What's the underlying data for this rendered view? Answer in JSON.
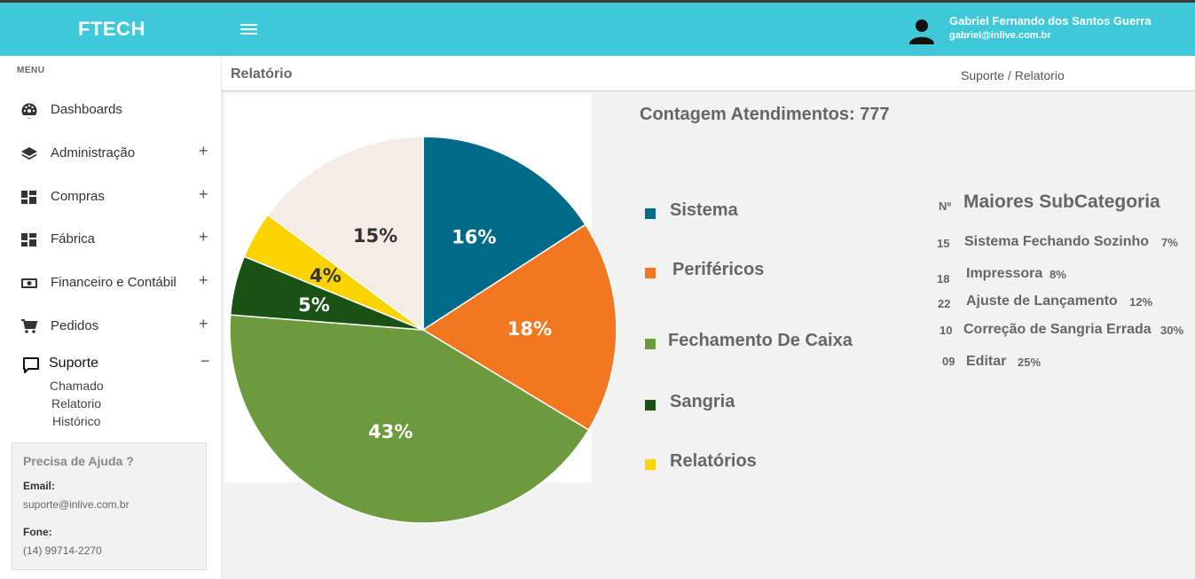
{
  "header": {
    "brand": "FTECH",
    "user_name": "Gabriel Fernando dos Santos Guerra",
    "user_email": "gabriel@inlive.com.br",
    "accent_color": "#3ec8d8"
  },
  "sidebar": {
    "menu_label": "MENU",
    "items": [
      {
        "label": "Dashboards",
        "icon": "dashboard-icon",
        "expand": ""
      },
      {
        "label": "Administração",
        "icon": "layers-icon",
        "expand": "+"
      },
      {
        "label": "Compras",
        "icon": "grid-icon",
        "expand": "+"
      },
      {
        "label": "Fábrica",
        "icon": "grid-icon",
        "expand": "+"
      },
      {
        "label": "Financeiro e Contábil",
        "icon": "money-icon",
        "expand": "+"
      },
      {
        "label": "Pedidos",
        "icon": "cart-icon",
        "expand": "+"
      },
      {
        "label": "Suporte",
        "icon": "chat-icon",
        "expand": "−"
      }
    ],
    "sub_items": [
      "Chamado",
      "Relatorio",
      "Histórico"
    ],
    "help": {
      "title": "Precisa de Ajuda ?",
      "email_label": "Email:",
      "email": "suporte@inlive.com.br",
      "phone_label": "Fone:",
      "phone": "(14) 99714-2270"
    }
  },
  "page": {
    "title": "Relatório",
    "breadcrumb": "Suporte / Relatorio"
  },
  "report": {
    "count_label": "Contagem Atendimentos: 777",
    "legend": [
      {
        "label": "Sistema",
        "color": "#006a89"
      },
      {
        "label": "Periféricos",
        "color": "#f37721"
      },
      {
        "label": "Fechamento De Caixa",
        "color": "#6d9a3d"
      },
      {
        "label": "Sangria",
        "color": "#1a5216"
      },
      {
        "label": "Relatórios",
        "color": "#fad400"
      }
    ],
    "subcategory": {
      "no_label": "Nº",
      "title": "Maiores SubCategoria",
      "rows": [
        {
          "num": "15",
          "name": "Sistema Fechando Sozinho",
          "pct": "7%"
        },
        {
          "num": "18",
          "name": "Impressora",
          "pct": "8%"
        },
        {
          "num": "22",
          "name": "Ajuste de Lançamento",
          "pct": "12%"
        },
        {
          "num": "10",
          "name": "Correção de Sangria Errada",
          "pct": "30%"
        },
        {
          "num": "09",
          "name": "Editar",
          "pct": "25%"
        }
      ]
    }
  },
  "chart_data": {
    "type": "pie",
    "categories": [
      "Sistema",
      "Periféricos",
      "Fechamento De Caixa",
      "Sangria",
      "Relatórios",
      ""
    ],
    "values": [
      16,
      18,
      43,
      5,
      4,
      15
    ],
    "labels": [
      "16%",
      "18%",
      "43%",
      "5%",
      "4%",
      "15%"
    ],
    "colors": [
      "#006a89",
      "#f37721",
      "#6d9a3d",
      "#1a5216",
      "#fad400",
      "#f5ede3"
    ],
    "label_colors": [
      "#ffffff",
      "#ffffff",
      "#ffffff",
      "#ffffff",
      "#333333",
      "#333333"
    ]
  }
}
